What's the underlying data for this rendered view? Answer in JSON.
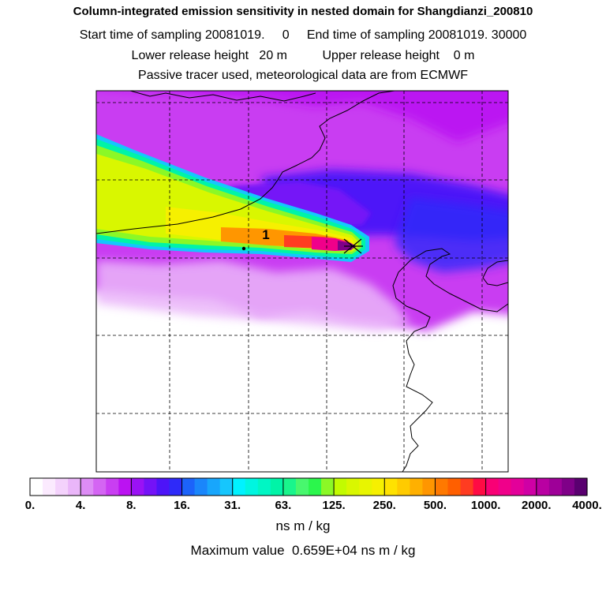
{
  "chart_data": {
    "type": "heatmap",
    "title": "Column-integrated emission sensitivity in nested domain for Shangdianzi_200810",
    "subtitle_lines": [
      "Start time of sampling 20081019.     0     End time of sampling 20081019. 30000",
      "Lower release height   20 m          Upper release height    0 m",
      "Passive tracer used, meteorological data are from ECMWF"
    ],
    "release_point_label": "1",
    "grid": true,
    "colorbar": {
      "orientation": "horizontal",
      "position": "bottom",
      "tick_labels": [
        "0.",
        "4.",
        "8.",
        "16.",
        "31.",
        "63.",
        "125.",
        "250.",
        "500.",
        "1000.",
        "2000.",
        "4000."
      ],
      "unit_label": "ns m / kg",
      "colors": [
        "#ffffff",
        "#fbeafe",
        "#f4d2fc",
        "#eab6f9",
        "#dd8cf5",
        "#d465f3",
        "#c93ef2",
        "#bb12f2",
        "#9a12f5",
        "#7412f7",
        "#4d14f8",
        "#2e2af9",
        "#1c63fa",
        "#1a86fb",
        "#18a6fc",
        "#16c6fd",
        "#00f2ff",
        "#00f5e0",
        "#00f6c4",
        "#00f4a7",
        "#19f58c",
        "#48f76e",
        "#2bf64c",
        "#8bf826",
        "#c2fb00",
        "#d9f700",
        "#e8f500",
        "#f6f000",
        "#ffe200",
        "#ffcb00",
        "#ffb000",
        "#ff9600",
        "#ff7900",
        "#ff5f00",
        "#ff3c21",
        "#ff0b44",
        "#f90075",
        "#f0008a",
        "#e3009a",
        "#cf00a5",
        "#b900a2",
        "#9e0098",
        "#7f0088",
        "#5a0070"
      ]
    },
    "max_value_text": "Maximum value  0.659E+04 ns m / kg"
  }
}
